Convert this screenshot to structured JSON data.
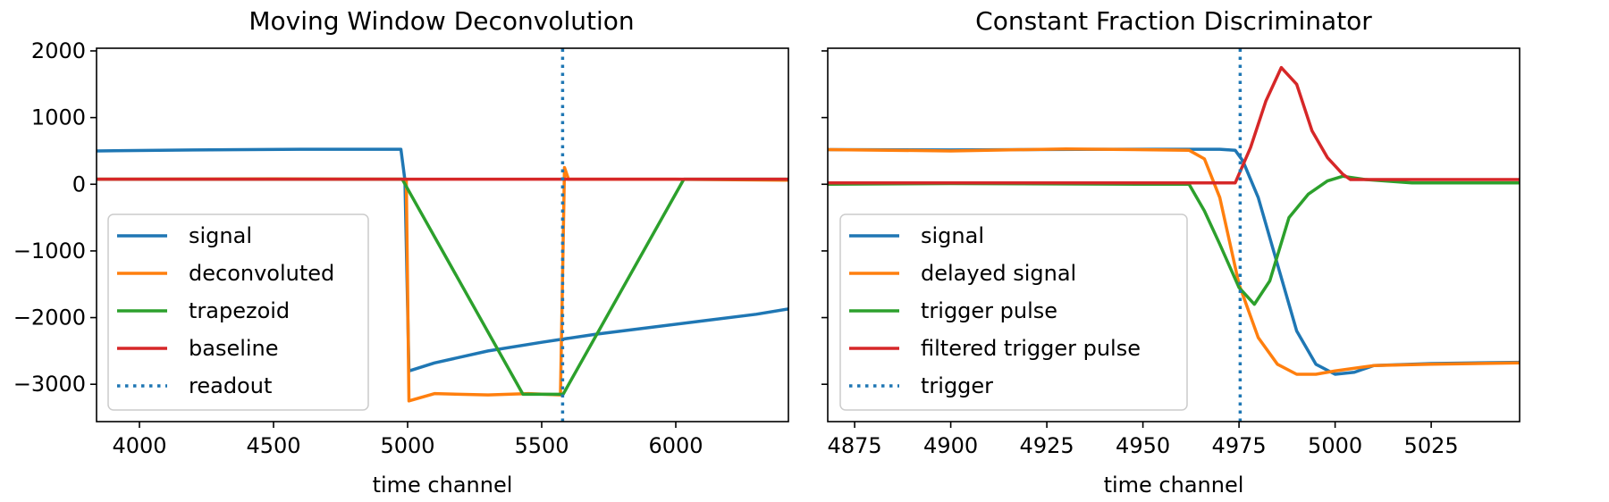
{
  "chart_data": [
    {
      "type": "line",
      "title": "Moving Window Deconvolution",
      "xlabel": "time channel",
      "ylabel": "",
      "xlim": [
        3840,
        6420
      ],
      "ylim": [
        -3560,
        2040
      ],
      "xticks": [
        4000,
        4500,
        5000,
        5500,
        6000
      ],
      "xtick_labels": [
        "4000",
        "4500",
        "5000",
        "5500",
        "6000"
      ],
      "yticks": [
        2000,
        1000,
        0,
        -1000,
        -2000,
        -3000
      ],
      "ytick_labels": [
        "2000",
        "1000",
        "0",
        "−1000",
        "−2000",
        "−3000"
      ],
      "legend_position": "lower-left",
      "series": [
        {
          "name": "signal",
          "color": "#1f77b4",
          "style": "solid",
          "x": [
            3840,
            4200,
            4600,
            4975,
            4990,
            5005,
            5100,
            5300,
            5500,
            5700,
            5900,
            6100,
            6300,
            6420
          ],
          "y": [
            500,
            515,
            525,
            525,
            60,
            -2800,
            -2680,
            -2500,
            -2370,
            -2250,
            -2150,
            -2050,
            -1950,
            -1870
          ]
        },
        {
          "name": "deconvoluted",
          "color": "#ff7f0e",
          "style": "solid",
          "x": [
            3840,
            4500,
            4980,
            4995,
            5005,
            5100,
            5300,
            5450,
            5570,
            5585,
            5600,
            5700,
            6000,
            6420
          ],
          "y": [
            75,
            80,
            75,
            75,
            -3250,
            -3140,
            -3160,
            -3140,
            -3160,
            250,
            75,
            75,
            75,
            60
          ]
        },
        {
          "name": "trapezoid",
          "color": "#2ca02c",
          "style": "solid",
          "x": [
            3840,
            4980,
            5430,
            5580,
            6030,
            6420
          ],
          "y": [
            75,
            75,
            -3150,
            -3150,
            75,
            75
          ]
        },
        {
          "name": "baseline",
          "color": "#d62728",
          "style": "solid",
          "x": [
            3840,
            6420
          ],
          "y": [
            75,
            75
          ]
        },
        {
          "name": "readout",
          "color": "#1f77b4",
          "style": "dotted",
          "x": [
            5578,
            5578
          ],
          "y": [
            -3560,
            2040
          ]
        }
      ]
    },
    {
      "type": "line",
      "title": "Constant Fraction Discriminator",
      "xlabel": "time channel",
      "ylabel": "",
      "xlim": [
        4868,
        5048
      ],
      "ylim": [
        -3560,
        2040
      ],
      "xticks": [
        4875,
        4900,
        4925,
        4950,
        4975,
        5000,
        5025
      ],
      "xtick_labels": [
        "4875",
        "4900",
        "4925",
        "4950",
        "4975",
        "5000",
        "5025"
      ],
      "yticks": [
        2000,
        1000,
        0,
        -1000,
        -2000,
        -3000
      ],
      "ytick_labels": [],
      "legend_position": "lower-left",
      "series": [
        {
          "name": "signal",
          "color": "#1f77b4",
          "style": "solid",
          "x": [
            4868,
            4900,
            4940,
            4970,
            4974,
            4976,
            4980,
            4985,
            4990,
            4995,
            5000,
            5005,
            5010,
            5025,
            5048
          ],
          "y": [
            520,
            515,
            525,
            525,
            510,
            350,
            -200,
            -1200,
            -2200,
            -2700,
            -2850,
            -2820,
            -2720,
            -2690,
            -2670
          ]
        },
        {
          "name": "delayed signal",
          "color": "#ff7f0e",
          "style": "solid",
          "x": [
            4868,
            4900,
            4930,
            4962,
            4966,
            4970,
            4975,
            4980,
            4985,
            4990,
            4995,
            5000,
            5010,
            5025,
            5048
          ],
          "y": [
            520,
            500,
            530,
            510,
            380,
            -200,
            -1500,
            -2300,
            -2700,
            -2850,
            -2850,
            -2800,
            -2720,
            -2700,
            -2680
          ]
        },
        {
          "name": "trigger pulse",
          "color": "#2ca02c",
          "style": "solid",
          "x": [
            4868,
            4900,
            4950,
            4962,
            4966,
            4970,
            4975,
            4979,
            4983,
            4988,
            4993,
            4998,
            5002,
            5008,
            5020,
            5048
          ],
          "y": [
            0,
            10,
            0,
            0,
            -400,
            -900,
            -1550,
            -1800,
            -1450,
            -500,
            -150,
            50,
            120,
            70,
            20,
            20
          ]
        },
        {
          "name": "filtered trigger pulse",
          "color": "#d62728",
          "style": "solid",
          "x": [
            4868,
            4974,
            4978,
            4982,
            4986,
            4990,
            4994,
            4998,
            5002,
            5004,
            5048
          ],
          "y": [
            20,
            20,
            550,
            1250,
            1750,
            1500,
            800,
            400,
            150,
            70,
            70
          ]
        },
        {
          "name": "trigger",
          "color": "#1f77b4",
          "style": "dotted",
          "x": [
            4975.3,
            4975.3
          ],
          "y": [
            -3560,
            2040
          ]
        }
      ]
    }
  ]
}
